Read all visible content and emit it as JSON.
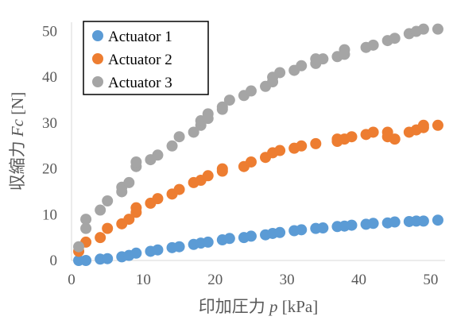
{
  "chart_data": {
    "type": "scatter",
    "xlabel": "印加圧力 p [kPa]",
    "xlabel_main": "印加圧力 ",
    "xlabel_var": "p",
    "xlabel_unit": " [kPa]",
    "ylabel": "収縮力 Fc [N]",
    "ylabel_main": "収縮力 ",
    "ylabel_var": "Fc",
    "ylabel_unit": " [N]",
    "xlim": [
      0,
      52
    ],
    "ylim": [
      0,
      52
    ],
    "xticks": [
      0,
      10,
      20,
      30,
      40,
      50
    ],
    "yticks": [
      0,
      10,
      20,
      30,
      40,
      50
    ],
    "grid": false,
    "legend_position": "top-left",
    "series": [
      {
        "name": "Actuator 1",
        "color": "#5b9bd5",
        "points": [
          [
            1,
            0
          ],
          [
            2,
            0
          ],
          [
            4,
            0.3
          ],
          [
            5,
            0.4
          ],
          [
            7,
            0.8
          ],
          [
            8,
            1.1
          ],
          [
            9,
            1.6
          ],
          [
            11,
            2.0
          ],
          [
            12,
            2.3
          ],
          [
            14,
            2.8
          ],
          [
            15,
            3.0
          ],
          [
            17,
            3.5
          ],
          [
            18,
            3.8
          ],
          [
            19,
            4.0
          ],
          [
            21,
            4.5
          ],
          [
            22,
            4.8
          ],
          [
            24,
            5.0
          ],
          [
            25,
            5.3
          ],
          [
            27,
            5.6
          ],
          [
            28,
            5.9
          ],
          [
            29,
            6.1
          ],
          [
            31,
            6.5
          ],
          [
            32,
            6.7
          ],
          [
            34,
            7.0
          ],
          [
            35,
            7.1
          ],
          [
            37,
            7.4
          ],
          [
            38,
            7.5
          ],
          [
            39,
            7.7
          ],
          [
            41,
            7.9
          ],
          [
            42,
            8.1
          ],
          [
            44,
            8.2
          ],
          [
            45,
            8.4
          ],
          [
            47,
            8.5
          ],
          [
            48,
            8.6
          ],
          [
            49,
            8.6
          ],
          [
            51,
            8.8
          ]
        ]
      },
      {
        "name": "Actuator 2",
        "color": "#ed7d31",
        "points": [
          [
            1,
            2
          ],
          [
            2,
            4
          ],
          [
            4,
            5
          ],
          [
            5,
            7
          ],
          [
            7,
            8
          ],
          [
            8,
            9
          ],
          [
            9,
            10.5
          ],
          [
            9,
            11.5
          ],
          [
            11,
            12.5
          ],
          [
            12,
            13.5
          ],
          [
            14,
            14.5
          ],
          [
            15,
            15.5
          ],
          [
            17,
            17
          ],
          [
            18,
            17.5
          ],
          [
            19,
            18.5
          ],
          [
            21,
            19.5
          ],
          [
            21,
            20
          ],
          [
            24,
            20.5
          ],
          [
            25,
            21.5
          ],
          [
            27,
            22.5
          ],
          [
            28,
            23.5
          ],
          [
            29,
            24
          ],
          [
            31,
            24.5
          ],
          [
            32,
            25
          ],
          [
            34,
            25.5
          ],
          [
            37,
            26
          ],
          [
            37,
            26.5
          ],
          [
            38,
            26.5
          ],
          [
            39,
            27
          ],
          [
            41,
            27.5
          ],
          [
            42,
            28
          ],
          [
            44,
            28
          ],
          [
            44,
            27
          ],
          [
            45,
            26.5
          ],
          [
            47,
            28
          ],
          [
            48,
            28.5
          ],
          [
            49,
            29
          ],
          [
            49,
            29.5
          ],
          [
            51,
            29.5
          ]
        ]
      },
      {
        "name": "Actuator 3",
        "color": "#a5a5a5",
        "points": [
          [
            1,
            3
          ],
          [
            2,
            7
          ],
          [
            2,
            9
          ],
          [
            4,
            11
          ],
          [
            5,
            13
          ],
          [
            7,
            15
          ],
          [
            7,
            16
          ],
          [
            8,
            17
          ],
          [
            9,
            20.5
          ],
          [
            9,
            21.5
          ],
          [
            11,
            22
          ],
          [
            12,
            23
          ],
          [
            14,
            25
          ],
          [
            15,
            27
          ],
          [
            17,
            28
          ],
          [
            18,
            29.5
          ],
          [
            18,
            30.5
          ],
          [
            19,
            31
          ],
          [
            19,
            32
          ],
          [
            21,
            33
          ],
          [
            21,
            33.5
          ],
          [
            22,
            35
          ],
          [
            24,
            36
          ],
          [
            25,
            37
          ],
          [
            27,
            38
          ],
          [
            28,
            39
          ],
          [
            28,
            40
          ],
          [
            29,
            41
          ],
          [
            31,
            41.5
          ],
          [
            32,
            42.5
          ],
          [
            34,
            43
          ],
          [
            34,
            44
          ],
          [
            35,
            44
          ],
          [
            37,
            44.5
          ],
          [
            38,
            45
          ],
          [
            38,
            46
          ],
          [
            41,
            46.5
          ],
          [
            42,
            47
          ],
          [
            44,
            48
          ],
          [
            45,
            48.5
          ],
          [
            47,
            49.5
          ],
          [
            48,
            50
          ],
          [
            49,
            50.5
          ],
          [
            51,
            50.5
          ]
        ]
      }
    ]
  }
}
